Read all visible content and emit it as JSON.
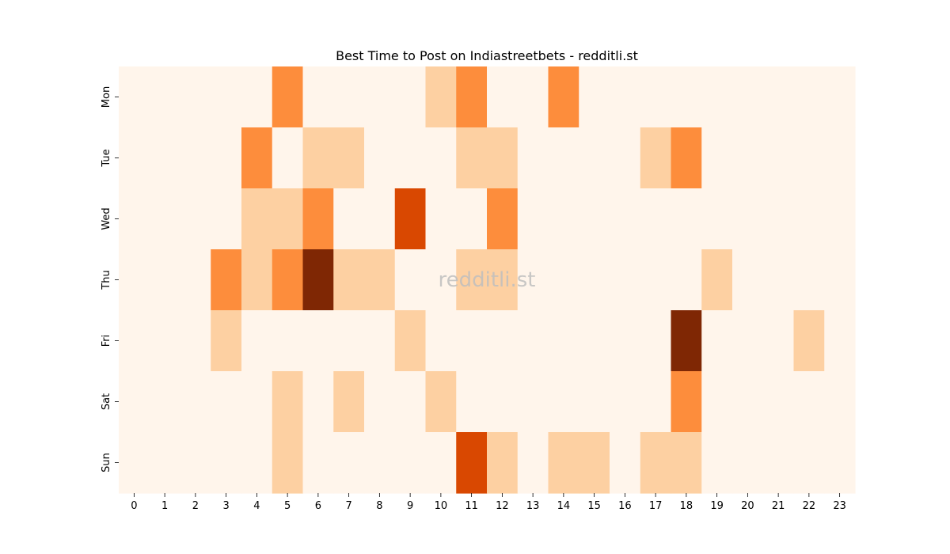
{
  "chart_data": {
    "type": "heatmap",
    "title": "Best Time to Post on Indiastreetbets - redditli.st",
    "watermark": "redditli.st",
    "xlabel": "",
    "ylabel": "",
    "x_categories": [
      "0",
      "1",
      "2",
      "3",
      "4",
      "5",
      "6",
      "7",
      "8",
      "9",
      "10",
      "11",
      "12",
      "13",
      "14",
      "15",
      "16",
      "17",
      "18",
      "19",
      "20",
      "21",
      "22",
      "23"
    ],
    "y_categories": [
      "Mon",
      "Tue",
      "Wed",
      "Thu",
      "Fri",
      "Sat",
      "Sun"
    ],
    "values": [
      [
        0,
        0,
        0,
        0,
        0,
        2,
        0,
        0,
        0,
        0,
        1,
        2,
        0,
        0,
        2,
        0,
        0,
        0,
        0,
        0,
        0,
        0,
        0,
        0
      ],
      [
        0,
        0,
        0,
        0,
        2,
        0,
        1,
        1,
        0,
        0,
        0,
        1,
        1,
        0,
        0,
        0,
        0,
        1,
        2,
        0,
        0,
        0,
        0,
        0
      ],
      [
        0,
        0,
        0,
        0,
        1,
        1,
        2,
        0,
        0,
        3,
        0,
        0,
        2,
        0,
        0,
        0,
        0,
        0,
        0,
        0,
        0,
        0,
        0,
        0
      ],
      [
        0,
        0,
        0,
        2,
        1,
        2,
        4,
        1,
        1,
        0,
        0,
        1,
        1,
        0,
        0,
        0,
        0,
        0,
        0,
        1,
        0,
        0,
        0,
        0
      ],
      [
        0,
        0,
        0,
        1,
        0,
        0,
        0,
        0,
        0,
        1,
        0,
        0,
        0,
        0,
        0,
        0,
        0,
        0,
        4,
        0,
        0,
        0,
        1,
        0
      ],
      [
        0,
        0,
        0,
        0,
        0,
        1,
        0,
        1,
        0,
        0,
        1,
        0,
        0,
        0,
        0,
        0,
        0,
        0,
        2,
        0,
        0,
        0,
        0,
        0
      ],
      [
        0,
        0,
        0,
        0,
        0,
        1,
        0,
        0,
        0,
        0,
        0,
        3,
        1,
        0,
        1,
        1,
        0,
        1,
        1,
        0,
        0,
        0,
        0,
        0
      ]
    ],
    "value_range": [
      0,
      4
    ],
    "colormap": "Oranges",
    "color_levels": [
      "#fff5eb",
      "#fdd0a2",
      "#fd8d3c",
      "#d94801",
      "#7f2704"
    ],
    "grid": false,
    "legend": "none"
  }
}
